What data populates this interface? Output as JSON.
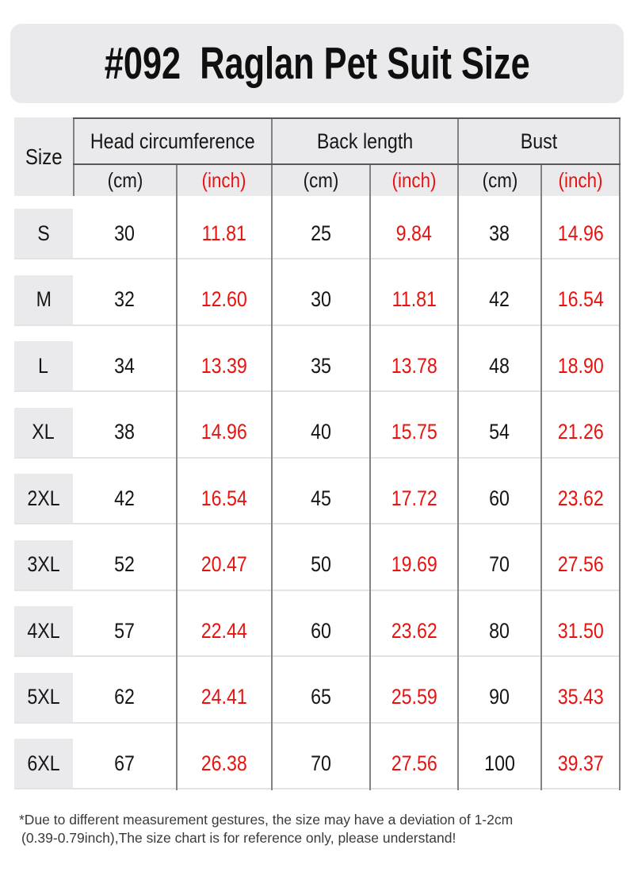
{
  "title": {
    "text": "#092  Raglan Pet Suit Size"
  },
  "table": {
    "size_header": "Size",
    "groups": [
      {
        "label": "Head circumference"
      },
      {
        "label": "Back length"
      },
      {
        "label": "Bust"
      }
    ],
    "units": [
      "(cm)",
      "(inch)",
      "(cm)",
      "(inch)",
      "(cm)",
      "(inch)"
    ],
    "rows": [
      {
        "size": "S",
        "values": [
          "30",
          "11.81",
          "25",
          "9.84",
          "38",
          "14.96"
        ]
      },
      {
        "size": "M",
        "values": [
          "32",
          "12.60",
          "30",
          "11.81",
          "42",
          "16.54"
        ]
      },
      {
        "size": "L",
        "values": [
          "34",
          "13.39",
          "35",
          "13.78",
          "48",
          "18.90"
        ]
      },
      {
        "size": "XL",
        "values": [
          "38",
          "14.96",
          "40",
          "15.75",
          "54",
          "21.26"
        ]
      },
      {
        "size": "2XL",
        "values": [
          "42",
          "16.54",
          "45",
          "17.72",
          "60",
          "23.62"
        ]
      },
      {
        "size": "3XL",
        "values": [
          "52",
          "20.47",
          "50",
          "19.69",
          "70",
          "27.56"
        ]
      },
      {
        "size": "4XL",
        "values": [
          "57",
          "22.44",
          "60",
          "23.62",
          "80",
          "31.50"
        ]
      },
      {
        "size": "5XL",
        "values": [
          "62",
          "24.41",
          "65",
          "25.59",
          "90",
          "35.43"
        ]
      },
      {
        "size": "6XL",
        "values": [
          "67",
          "26.38",
          "70",
          "27.56",
          "100",
          "39.37"
        ]
      }
    ]
  },
  "footnote": {
    "lines": [
      "*Due to different measurement gestures, the size may have a deviation of 1-2cm",
      "(0.39-0.79inch),The size chart is for reference only, please understand!"
    ]
  },
  "colors": {
    "accent_red": "#e8120f",
    "panel": "#eaeaed",
    "line_dark": "#58585b",
    "line_mid": "#828285",
    "row_border": "#e4e4e7",
    "text": "#161616",
    "footnote_text": "#3a3a3a",
    "page_bg": "#ffffff"
  }
}
